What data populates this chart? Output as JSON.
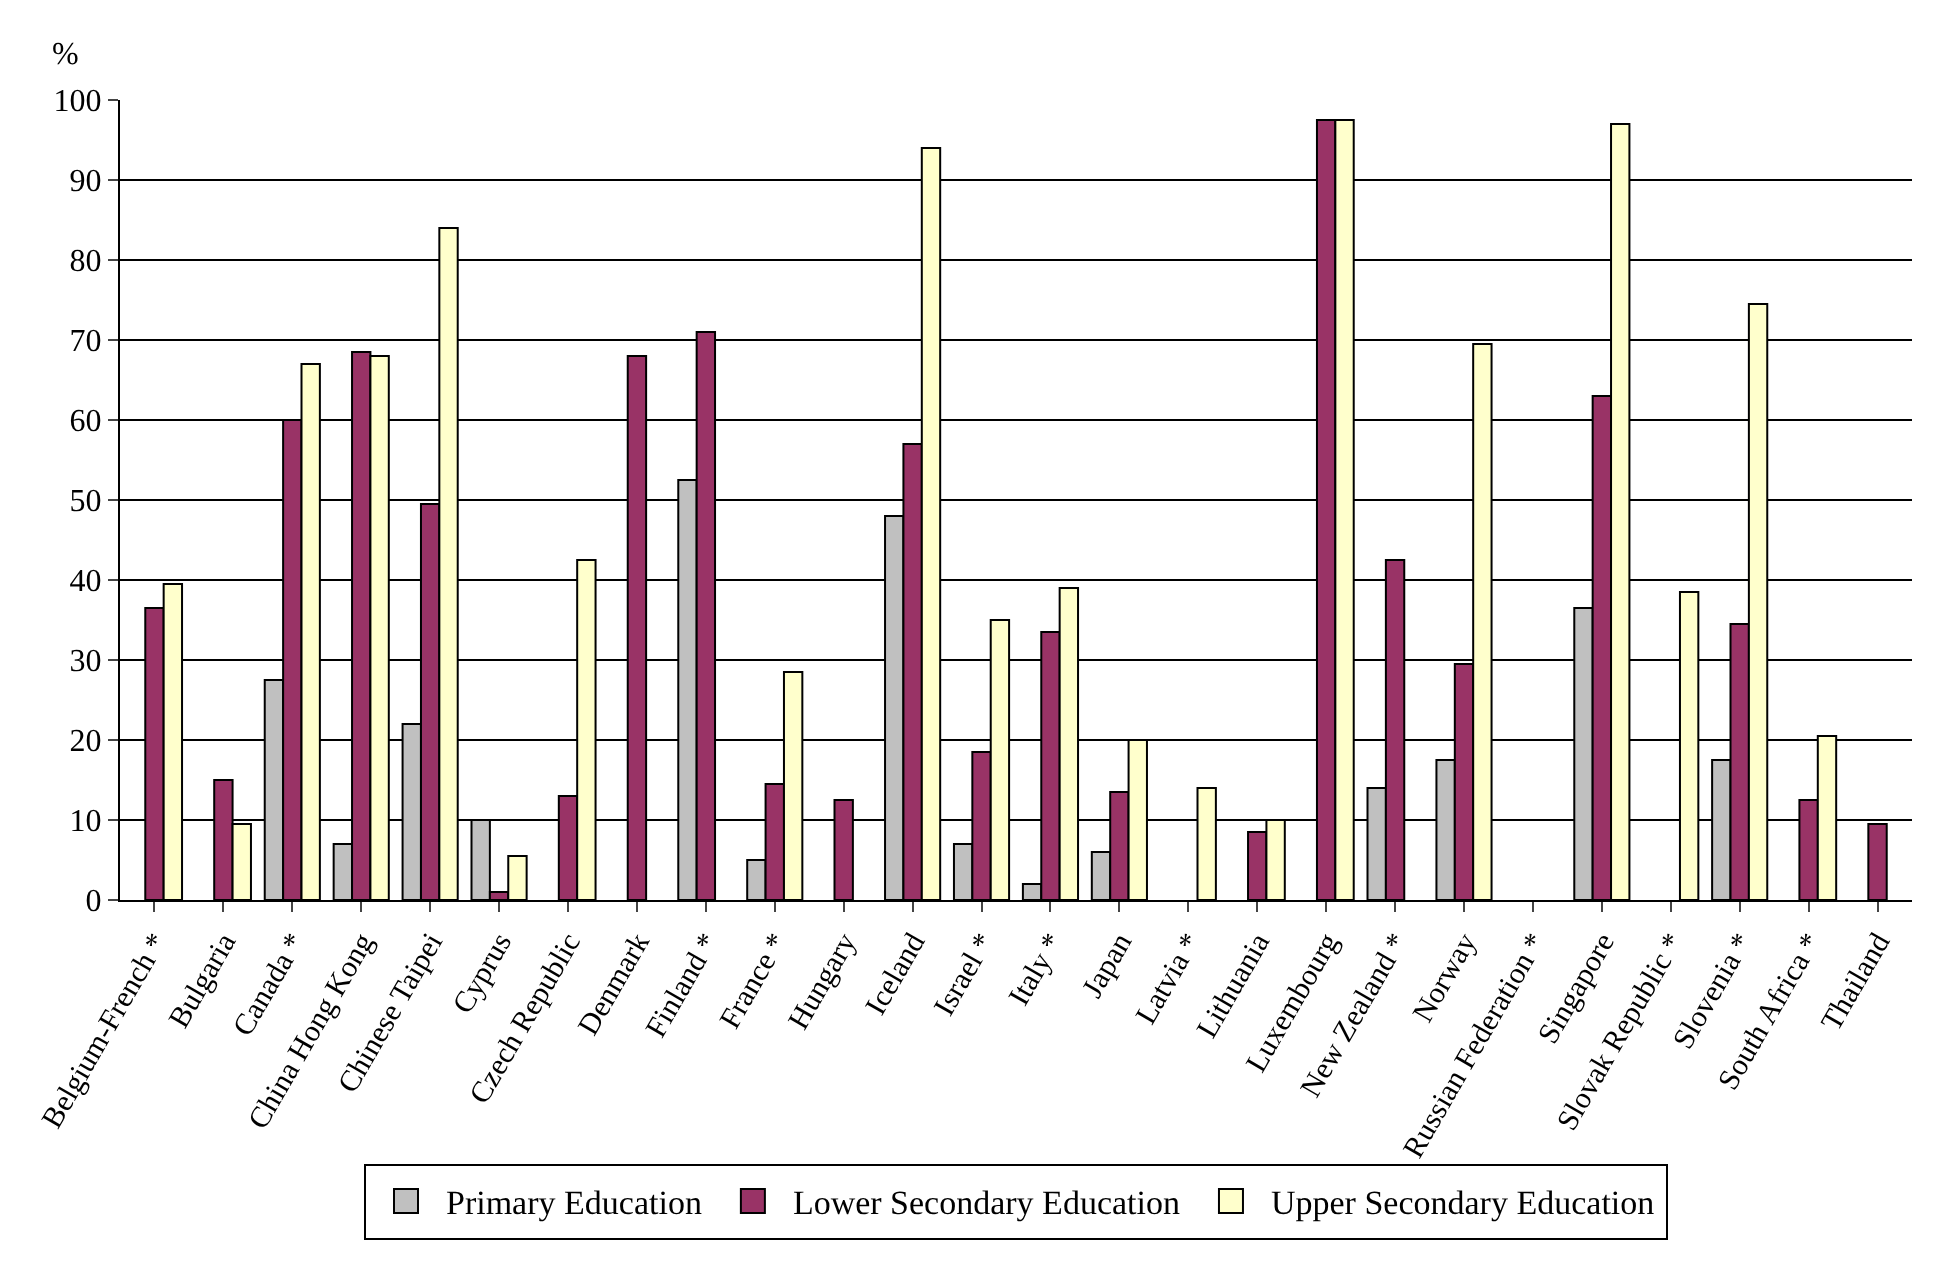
{
  "chart_data": {
    "type": "bar",
    "ylabel": "%",
    "categories": [
      "Belgium-French *",
      "Bulgaria",
      "Canada *",
      "China Hong Kong",
      "Chinese Taipei",
      "Cyprus",
      "Czech Republic",
      "Denmark",
      "Finland *",
      "France *",
      "Hungary",
      "Iceland",
      "Israel *",
      "Italy *",
      "Japan",
      "Latvia *",
      "Lithuania",
      "Luxembourg",
      "New Zealand *",
      "Norway",
      "Russian Federation *",
      "Singapore",
      "Slovak Republic *",
      "Slovenia *",
      "South Africa *",
      "Thailand"
    ],
    "series": [
      {
        "name": "Primary Education",
        "color": "#c0c0c0",
        "values": [
          null,
          null,
          27.5,
          7,
          22,
          10,
          null,
          null,
          52.5,
          5,
          null,
          48,
          7,
          2,
          6,
          null,
          null,
          null,
          14,
          17.5,
          null,
          36.5,
          null,
          17.5,
          null,
          null
        ]
      },
      {
        "name": "Lower Secondary Education",
        "color": "#993366",
        "values": [
          36.5,
          15,
          60,
          68.5,
          49.5,
          1,
          13,
          68,
          71,
          14.5,
          12.5,
          57,
          18.5,
          33.5,
          13.5,
          null,
          8.5,
          97.5,
          42.5,
          29.5,
          null,
          63,
          null,
          34.5,
          12.5,
          9.5
        ]
      },
      {
        "name": "Upper Secondary Education",
        "color": "#ffffcc",
        "values": [
          39.5,
          9.5,
          67,
          68,
          84,
          5.5,
          42.5,
          null,
          null,
          28.5,
          null,
          94,
          35,
          39,
          20,
          14,
          10,
          97.5,
          null,
          69.5,
          null,
          97,
          38.5,
          74.5,
          20.5,
          null
        ]
      }
    ],
    "ylim": [
      0,
      100
    ],
    "yticks": [
      0,
      10,
      20,
      30,
      40,
      50,
      60,
      70,
      80,
      90,
      100
    ],
    "grid": "y",
    "legend": "bottom"
  }
}
